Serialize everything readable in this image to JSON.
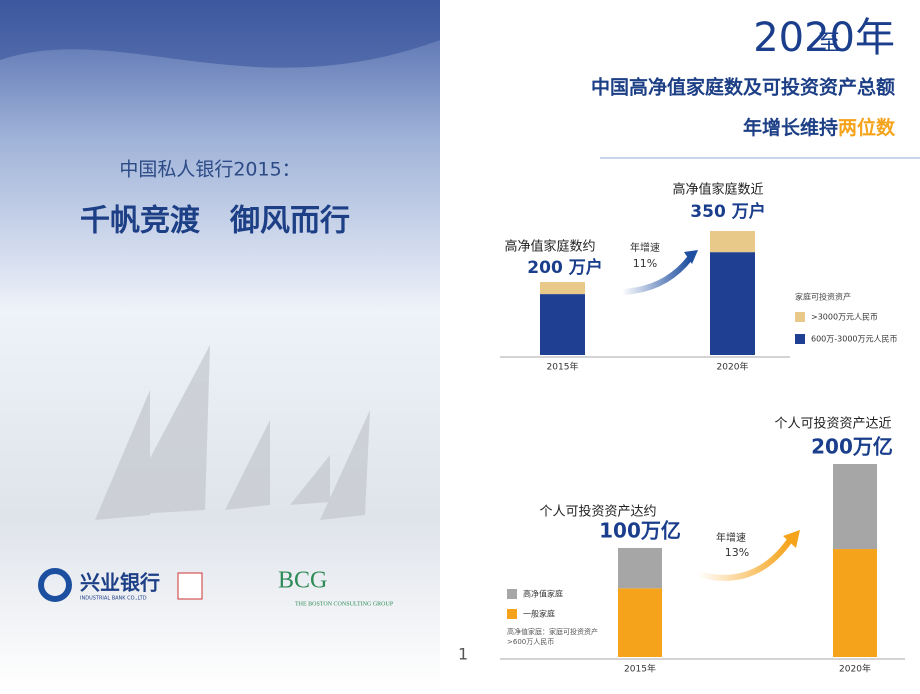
{
  "cover": {
    "subtitle": "中国私人银行2015：",
    "title": "千帆竞渡　御风而行",
    "bank_name": "兴业银行",
    "bank_name_en": "INDUSTRIAL BANK CO.,LTD",
    "bcg": "BCG",
    "bcg_name": "THE BOSTON CONSULTING GROUP"
  },
  "header": {
    "year_prefix": "至",
    "year": "2020年",
    "line1": "中国高净值家庭数及可投资资产总额",
    "line2": "年增长维持",
    "line2_highlight": "两位数"
  },
  "page_number": "1",
  "chart_data": [
    {
      "type": "bar",
      "stacked": true,
      "categories": [
        "2015年",
        "2020年"
      ],
      "series": [
        {
          "name": ">3000万元人民币",
          "color": "#e8c98a",
          "values": [
            33,
            58
          ]
        },
        {
          "name": "600万-3000万元人民币",
          "color": "#1f3f93",
          "values": [
            167,
            282
          ]
        }
      ],
      "legend_title": "家庭可投资资产",
      "callouts": [
        {
          "caption": "高净值家庭数约",
          "amount": "200 万户"
        },
        {
          "caption": "高净值家庭数近",
          "amount": "350 万户"
        }
      ],
      "growth_label": "年增速",
      "growth_rate": "11%"
    },
    {
      "type": "bar",
      "stacked": true,
      "categories": [
        "2015年",
        "2020年"
      ],
      "series": [
        {
          "name": "高净值家庭",
          "color": "#a6a6a6",
          "values": [
            37,
            78
          ]
        },
        {
          "name": "一般家庭",
          "color": "#f5a31a",
          "values": [
            63,
            99
          ]
        }
      ],
      "legend_note": [
        "高净值家庭：家庭可投资资产",
        ">600万人民币"
      ],
      "callouts": [
        {
          "caption": "个人可投资资产达约",
          "amount": "100万亿"
        },
        {
          "caption": "个人可投资资产达近",
          "amount": "200万亿"
        }
      ],
      "growth_label": "年增速",
      "growth_rate": "13%"
    }
  ]
}
